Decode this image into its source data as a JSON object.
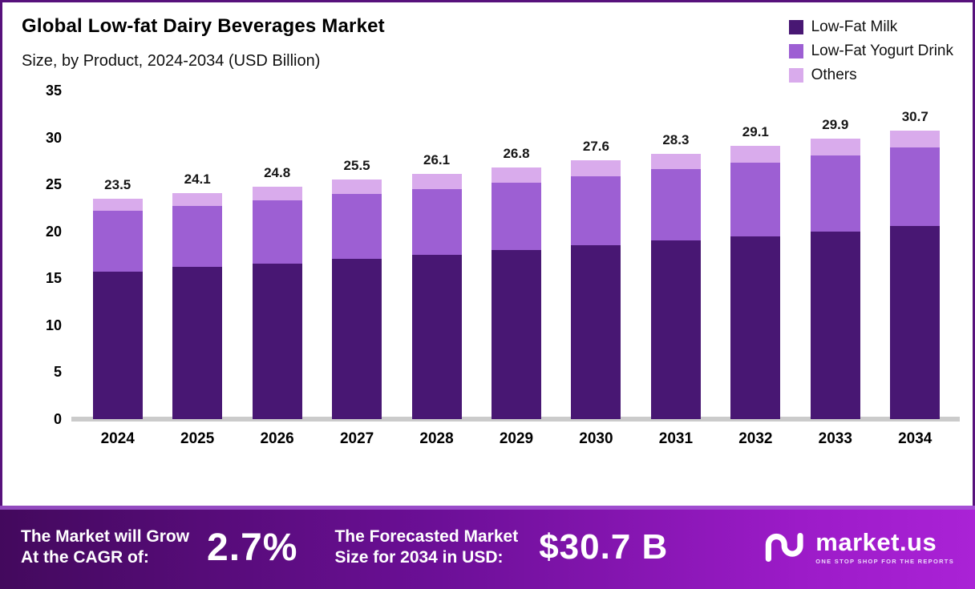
{
  "title": "Global Low-fat Dairy Beverages Market",
  "subtitle": "Size, by Product, 2024-2034 (USD Billion)",
  "legend": [
    {
      "label": "Low-Fat Milk",
      "color": "#481773"
    },
    {
      "label": "Low-Fat Yogurt Drink",
      "color": "#9d5fd3"
    },
    {
      "label": "Others",
      "color": "#d9abec"
    }
  ],
  "chart_data": {
    "type": "bar",
    "stacked": true,
    "title": "Global Low-fat Dairy Beverages Market Size, by Product, 2024-2034 (USD Billion)",
    "categories": [
      "2024",
      "2025",
      "2026",
      "2027",
      "2028",
      "2029",
      "2030",
      "2031",
      "2032",
      "2033",
      "2034"
    ],
    "series": [
      {
        "name": "Low-Fat Milk",
        "color": "#481773",
        "values": [
          15.7,
          16.2,
          16.6,
          17.1,
          17.5,
          18.0,
          18.5,
          19.0,
          19.5,
          20.0,
          20.6
        ]
      },
      {
        "name": "Low-Fat Yogurt Drink",
        "color": "#9d5fd3",
        "values": [
          6.5,
          6.5,
          6.7,
          6.9,
          7.0,
          7.2,
          7.4,
          7.6,
          7.8,
          8.1,
          8.3
        ]
      },
      {
        "name": "Others",
        "color": "#d9abec",
        "values": [
          1.3,
          1.4,
          1.5,
          1.5,
          1.6,
          1.6,
          1.7,
          1.7,
          1.8,
          1.8,
          1.8
        ]
      }
    ],
    "totals": [
      23.5,
      24.1,
      24.8,
      25.5,
      26.1,
      26.8,
      27.6,
      28.3,
      29.1,
      29.9,
      30.7
    ],
    "xlabel": "",
    "ylabel": "",
    "ylim": [
      0,
      35
    ],
    "yticks": [
      0,
      5,
      10,
      15,
      20,
      25,
      30,
      35
    ],
    "grid": false,
    "legend_position": "top-right"
  },
  "footer": {
    "cagr_label_line1": "The Market will Grow",
    "cagr_label_line2": "At the CAGR of:",
    "cagr_value": "2.7%",
    "forecast_label_line1": "The Forecasted Market",
    "forecast_label_line2": "Size for 2034 in USD:",
    "forecast_value": "$30.7 B",
    "brand": "market.us",
    "brand_tagline": "ONE STOP SHOP FOR THE REPORTS"
  }
}
